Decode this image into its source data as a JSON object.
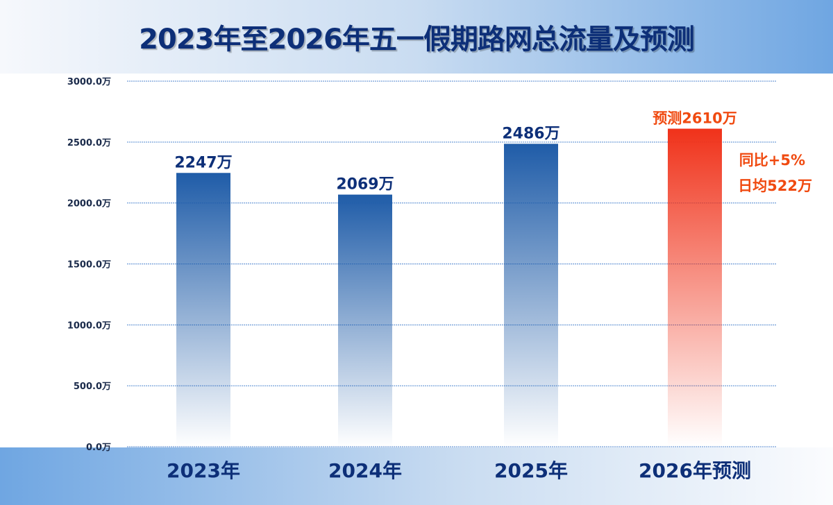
{
  "chart_data": {
    "type": "bar",
    "title": "2023年至2026年五一假期路网总流量及预测",
    "categories": [
      "2023年",
      "2024年",
      "2025年",
      "2026年预测"
    ],
    "values": [
      2247,
      2069,
      2486,
      2610
    ],
    "data_labels": [
      "2247万",
      "2069万",
      "2486万",
      "预测2610万"
    ],
    "annotations": [
      "同比+5%",
      "日均522万"
    ],
    "ylim": [
      0,
      3000
    ],
    "yticks": [
      "0.0万",
      "500.0万",
      "1000.0万",
      "1500.0万",
      "2000.0万",
      "2500.0万",
      "3000.0万"
    ],
    "grid": true,
    "colors": {
      "actual": "#1f5ca8",
      "forecast": "#f0321a",
      "title": "#0d2f78",
      "forecast_label": "#f04a10"
    }
  }
}
